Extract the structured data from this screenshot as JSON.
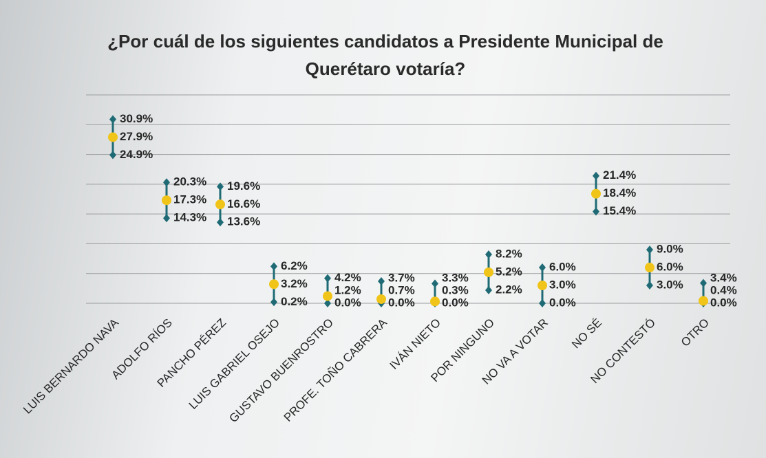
{
  "chart_data": {
    "type": "errorbar",
    "title": "¿Por cuál de los siguientes candidatos a Presidente Municipal de Querétaro votaría?",
    "categories": [
      "LUIS BERNARDO NAVA",
      "ADOLFO RÍOS",
      "PANCHO PÉREZ",
      "LUIS GABRIEL OSEJO",
      "GUSTAVO BUENROSTRO",
      "PROFE. TOÑO CABRERA",
      "IVÁN NIETO",
      "POR NINGUNO",
      "NO VA A VOTAR",
      "NO SÉ",
      "NO CONTESTÓ",
      "OTRO"
    ],
    "series": [
      {
        "color": "#1f6b75",
        "values": [
          30.9,
          20.3,
          19.6,
          6.2,
          4.2,
          3.7,
          3.3,
          8.2,
          6.0,
          21.4,
          9.0,
          3.4
        ],
        "value_labels": [
          "30.9%",
          "20.3%",
          "19.6%",
          "6.2%",
          "4.2%",
          "3.7%",
          "3.3%",
          "8.2%",
          "6.0%",
          "21.4%",
          "9.0%",
          "3.4%"
        ]
      },
      {
        "color": "#f0c419",
        "values": [
          27.9,
          17.3,
          16.6,
          3.2,
          1.2,
          0.7,
          0.3,
          5.2,
          3.0,
          18.4,
          6.0,
          0.4
        ],
        "value_labels": [
          "27.9%",
          "17.3%",
          "16.6%",
          "3.2%",
          "1.2%",
          "0.7%",
          "0.3%",
          "5.2%",
          "3.0%",
          "18.4%",
          "6.0%",
          "0.4%"
        ]
      },
      {
        "color": "#1f6b75",
        "values": [
          24.9,
          14.3,
          13.6,
          0.2,
          0.0,
          0.0,
          0.0,
          2.2,
          0.0,
          15.4,
          3.0,
          0.0
        ],
        "value_labels": [
          "24.9%",
          "14.3%",
          "13.6%",
          "0.2%",
          "0.0%",
          "0.0%",
          "0.0%",
          "2.2%",
          "0.0%",
          "15.4%",
          "3.0%",
          "0.0%"
        ]
      }
    ],
    "ylim": [
      0,
      35
    ],
    "yticks": [
      0,
      5,
      10,
      15,
      20,
      25,
      30,
      35
    ],
    "grid": true
  }
}
